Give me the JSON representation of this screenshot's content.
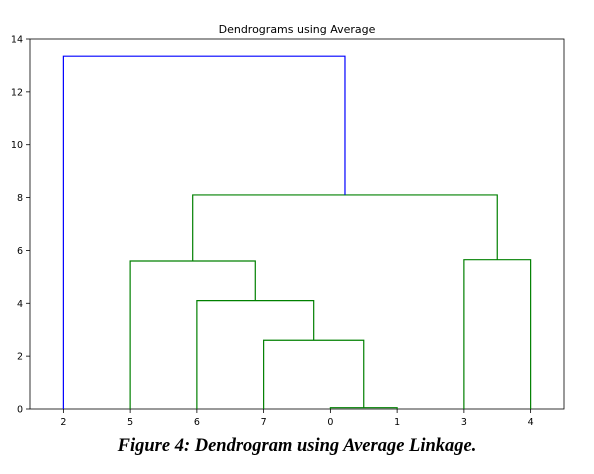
{
  "chart_data": {
    "type": "dendrogram",
    "title": "Dendrograms using Average",
    "xlabel": "",
    "ylabel": "",
    "leaf_order": [
      "2",
      "5",
      "6",
      "7",
      "0",
      "1",
      "3",
      "4"
    ],
    "ylim": [
      0,
      14
    ],
    "yticks": [
      0,
      2,
      4,
      6,
      8,
      10,
      12,
      14
    ],
    "merges": [
      {
        "left": "0",
        "right": "1",
        "height": 0.05,
        "color": "#008000"
      },
      {
        "left": "3",
        "right": "4",
        "height": 5.65,
        "color": "#008000"
      },
      {
        "left": "7",
        "right": "[0,1]",
        "height": 2.6,
        "color": "#008000"
      },
      {
        "left": "6",
        "right": "[7,0,1]",
        "height": 4.1,
        "color": "#008000"
      },
      {
        "left": "5",
        "right": "[6,7,0,1]",
        "height": 5.6,
        "color": "#008000"
      },
      {
        "left": "[5,6,7,0,1]",
        "right": "[3,4]",
        "height": 8.1,
        "color": "#008000"
      },
      {
        "left": "2",
        "right": "[5,6,7,0,1,3,4]",
        "height": 13.35,
        "color": "#0000ff"
      }
    ],
    "grid": false
  },
  "caption": "Figure 4: Dendrogram using Average Linkage."
}
